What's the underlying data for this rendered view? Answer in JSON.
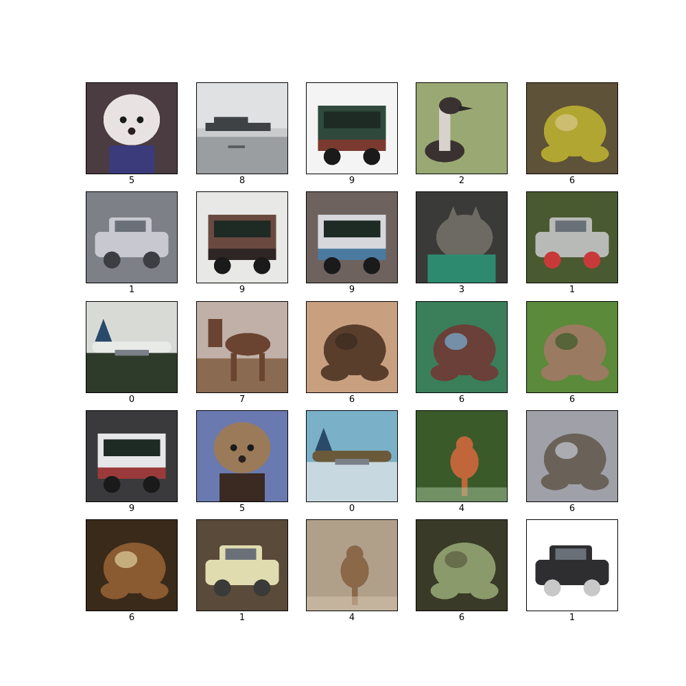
{
  "grid": {
    "rows": 5,
    "cols": 5,
    "image_resolution": "32x32 low-resolution photos",
    "cells": [
      {
        "label": "5",
        "subject": "dog",
        "colors": {
          "bg": "#4a3c40",
          "main": "#e8e2e2",
          "accent": "#3b3a7a"
        }
      },
      {
        "label": "8",
        "subject": "ship",
        "colors": {
          "bg": "#c9cbcc",
          "main": "#3e4244",
          "accent": "#9a9ea0"
        }
      },
      {
        "label": "9",
        "subject": "truck",
        "colors": {
          "bg": "#f4f4f4",
          "main": "#2f4a3c",
          "accent": "#7a3a30"
        }
      },
      {
        "label": "2",
        "subject": "bird",
        "colors": {
          "bg": "#9aa874",
          "main": "#3a3230",
          "accent": "#d8d2cc"
        }
      },
      {
        "label": "6",
        "subject": "frog",
        "colors": {
          "bg": "#5e5238",
          "main": "#b2a632",
          "accent": "#d8c88a"
        }
      },
      {
        "label": "1",
        "subject": "automobile",
        "colors": {
          "bg": "#7e8088",
          "main": "#c7c8d0",
          "accent": "#3c3e44"
        }
      },
      {
        "label": "9",
        "subject": "truck",
        "colors": {
          "bg": "#e8e8e6",
          "main": "#6a4a40",
          "accent": "#2e2624"
        }
      },
      {
        "label": "9",
        "subject": "truck",
        "colors": {
          "bg": "#6e625e",
          "main": "#d6d8dc",
          "accent": "#4a7aa0"
        }
      },
      {
        "label": "3",
        "subject": "cat",
        "colors": {
          "bg": "#3a3a38",
          "main": "#6c6a62",
          "accent": "#2e8a6e"
        }
      },
      {
        "label": "1",
        "subject": "automobile",
        "colors": {
          "bg": "#4a5a30",
          "main": "#b8bab8",
          "accent": "#c83a3a"
        }
      },
      {
        "label": "0",
        "subject": "airplane",
        "colors": {
          "bg": "#d8dad6",
          "main": "#e8eae8",
          "accent": "#2e3a2a"
        }
      },
      {
        "label": "7",
        "subject": "horse",
        "colors": {
          "bg": "#c0b0a8",
          "main": "#6a4430",
          "accent": "#8a6a50"
        }
      },
      {
        "label": "6",
        "subject": "frog",
        "colors": {
          "bg": "#c8a080",
          "main": "#5a3e2c",
          "accent": "#3a2a20"
        }
      },
      {
        "label": "6",
        "subject": "frog",
        "colors": {
          "bg": "#3a7e5a",
          "main": "#6a4038",
          "accent": "#7ab0d8"
        }
      },
      {
        "label": "6",
        "subject": "frog",
        "colors": {
          "bg": "#5a8a3a",
          "main": "#9a7a60",
          "accent": "#3a5a2a"
        }
      },
      {
        "label": "9",
        "subject": "truck",
        "colors": {
          "bg": "#3a3a3c",
          "main": "#e6e6e8",
          "accent": "#9a3a3a"
        }
      },
      {
        "label": "5",
        "subject": "dog",
        "colors": {
          "bg": "#6a7ab0",
          "main": "#9a7a58",
          "accent": "#3a2a22"
        }
      },
      {
        "label": "0",
        "subject": "airplane",
        "colors": {
          "bg": "#7ab0c8",
          "main": "#6a5a3a",
          "accent": "#c8d8e0"
        }
      },
      {
        "label": "4",
        "subject": "deer",
        "colors": {
          "bg": "#3a5a2a",
          "main": "#c0663a",
          "accent": "#a8c8a0"
        }
      },
      {
        "label": "6",
        "subject": "frog",
        "colors": {
          "bg": "#a0a0a8",
          "main": "#6a6258",
          "accent": "#c8ccd8"
        }
      },
      {
        "label": "6",
        "subject": "frog",
        "colors": {
          "bg": "#3a2a1a",
          "main": "#8a5a30",
          "accent": "#e0d0a0"
        }
      },
      {
        "label": "1",
        "subject": "automobile",
        "colors": {
          "bg": "#5a4a3a",
          "main": "#e0dcb0",
          "accent": "#3a3a38"
        }
      },
      {
        "label": "4",
        "subject": "deer",
        "colors": {
          "bg": "#b0a08a",
          "main": "#8a6848",
          "accent": "#d8c8b0"
        }
      },
      {
        "label": "6",
        "subject": "frog",
        "colors": {
          "bg": "#3a3a28",
          "main": "#8a9a6a",
          "accent": "#5a5a40"
        }
      },
      {
        "label": "1",
        "subject": "automobile",
        "colors": {
          "bg": "#ffffff",
          "main": "#2e2e30",
          "accent": "#c8c8c8"
        }
      }
    ]
  }
}
